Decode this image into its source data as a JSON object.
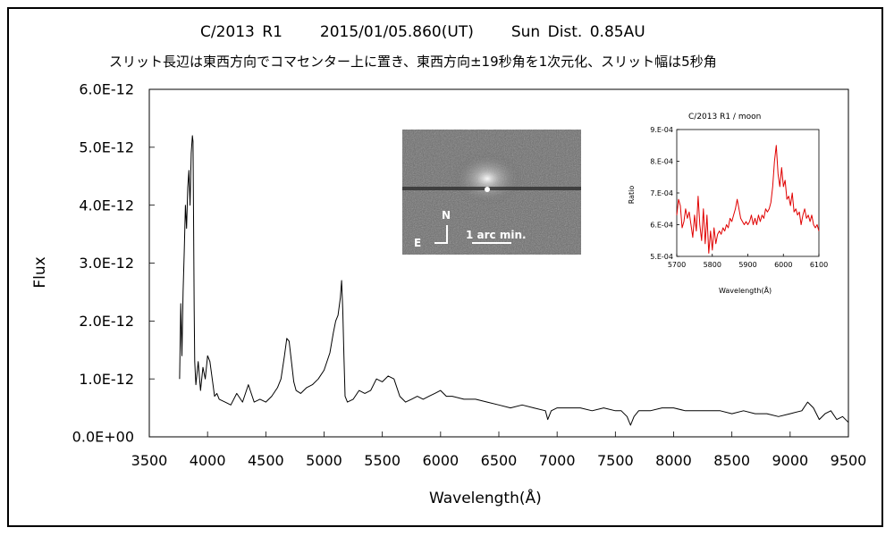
{
  "chart_data": [
    {
      "type": "line",
      "title": "C/2013 R1     2015/01/05.860(UT)     Sun Dist. 0.85AU",
      "subtitle": "スリット長辺は東西方向でコマセンター上に置き、東西方向±19秒角を1次元化、スリット幅は5秒角",
      "xlabel": "Wavelength(Å)",
      "ylabel": "Flux",
      "xlim": [
        3500,
        9500
      ],
      "ylim": [
        0,
        6e-12
      ],
      "x_ticks": [
        "3500",
        "4000",
        "4500",
        "5000",
        "5500",
        "6000",
        "6500",
        "7000",
        "7500",
        "8000",
        "8500",
        "9000",
        "9500"
      ],
      "y_ticks": [
        "0.0E+00",
        "1.0E-12",
        "2.0E-12",
        "3.0E-12",
        "4.0E-12",
        "5.0E-12",
        "6.0E-12"
      ],
      "grid": false,
      "line_color": "#000000",
      "series": [
        {
          "x": [
            3760,
            3770,
            3780,
            3790,
            3800,
            3810,
            3820,
            3830,
            3840,
            3850,
            3860,
            3870,
            3875,
            3880,
            3885,
            3890,
            3900,
            3910,
            3920,
            3940,
            3960,
            3980,
            4000,
            4020,
            4040,
            4060,
            4080,
            4100,
            4150,
            4200,
            4250,
            4300,
            4350,
            4400,
            4450,
            4500,
            4550,
            4600,
            4630,
            4660,
            4680,
            4700,
            4720,
            4740,
            4760,
            4800,
            4850,
            4900,
            4950,
            5000,
            5050,
            5080,
            5100,
            5120,
            5140,
            5150,
            5160,
            5170,
            5180,
            5200,
            5250,
            5300,
            5350,
            5400,
            5450,
            5500,
            5550,
            5600,
            5650,
            5700,
            5750,
            5800,
            5850,
            5900,
            5950,
            6000,
            6050,
            6100,
            6200,
            6300,
            6400,
            6500,
            6600,
            6700,
            6800,
            6900,
            6920,
            6950,
            7000,
            7100,
            7200,
            7300,
            7400,
            7500,
            7550,
            7600,
            7630,
            7660,
            7700,
            7750,
            7800,
            7900,
            8000,
            8100,
            8200,
            8300,
            8400,
            8500,
            8600,
            8700,
            8800,
            8900,
            9000,
            9100,
            9150,
            9200,
            9250,
            9300,
            9350,
            9400,
            9450,
            9500
          ],
          "y": [
            1e-12,
            2.3e-12,
            1.4e-12,
            2.5e-12,
            3.2e-12,
            4e-12,
            3.6e-12,
            4.3e-12,
            4.6e-12,
            4e-12,
            4.9e-12,
            5.2e-12,
            5.1e-12,
            3.8e-12,
            2.2e-12,
            1.3e-12,
            9e-13,
            1.1e-12,
            1.3e-12,
            8e-13,
            1.2e-12,
            1e-12,
            1.4e-12,
            1.3e-12,
            1e-12,
            7e-13,
            7.5e-13,
            6.5e-13,
            6e-13,
            5.5e-13,
            7.5e-13,
            6e-13,
            9e-13,
            6e-13,
            6.5e-13,
            6e-13,
            7e-13,
            8.5e-13,
            1e-12,
            1.4e-12,
            1.7e-12,
            1.65e-12,
            1.3e-12,
            9.5e-13,
            8e-13,
            7.5e-13,
            8.5e-13,
            9e-13,
            1e-12,
            1.15e-12,
            1.45e-12,
            1.8e-12,
            2e-12,
            2.1e-12,
            2.4e-12,
            2.7e-12,
            2.2e-12,
            1.4e-12,
            7e-13,
            6e-13,
            6.5e-13,
            8e-13,
            7.5e-13,
            8e-13,
            1e-12,
            9.5e-13,
            1.05e-12,
            1e-12,
            7e-13,
            6e-13,
            6.5e-13,
            7e-13,
            6.5e-13,
            7e-13,
            7.5e-13,
            8e-13,
            7e-13,
            7e-13,
            6.5e-13,
            6.5e-13,
            6e-13,
            5.5e-13,
            5e-13,
            5.5e-13,
            5e-13,
            4.5e-13,
            3e-13,
            4.5e-13,
            5e-13,
            5e-13,
            5e-13,
            4.5e-13,
            5e-13,
            4.5e-13,
            4.5e-13,
            3.5e-13,
            2e-13,
            3.5e-13,
            4.5e-13,
            4.5e-13,
            4.5e-13,
            5e-13,
            5e-13,
            4.5e-13,
            4.5e-13,
            4.5e-13,
            4.5e-13,
            4e-13,
            4.5e-13,
            4e-13,
            4e-13,
            3.5e-13,
            4e-13,
            4.5e-13,
            6e-13,
            5e-13,
            3e-13,
            4e-13,
            4.5e-13,
            3e-13,
            3.5e-13,
            2.5e-13
          ]
        }
      ]
    },
    {
      "type": "line",
      "title": "C/2013 R1 / moon",
      "xlabel": "Wavelength(Å)",
      "ylabel": "Ratio",
      "xlim": [
        5700,
        6100
      ],
      "ylim": [
        0.0005,
        0.0009
      ],
      "x_ticks": [
        "5700",
        "5800",
        "5900",
        "6000",
        "6100"
      ],
      "y_ticks": [
        "5.E-04",
        "6.E-04",
        "7.E-04",
        "8.E-04",
        "9.E-04"
      ],
      "grid": false,
      "line_color": "#e00000",
      "series": [
        {
          "x": [
            5700,
            5705,
            5710,
            5715,
            5720,
            5725,
            5730,
            5735,
            5740,
            5745,
            5750,
            5755,
            5760,
            5765,
            5770,
            5775,
            5780,
            5785,
            5790,
            5795,
            5800,
            5805,
            5810,
            5815,
            5820,
            5825,
            5830,
            5835,
            5840,
            5845,
            5850,
            5855,
            5860,
            5865,
            5870,
            5875,
            5880,
            5885,
            5890,
            5895,
            5900,
            5905,
            5910,
            5915,
            5920,
            5925,
            5930,
            5935,
            5940,
            5945,
            5950,
            5955,
            5960,
            5965,
            5970,
            5975,
            5980,
            5985,
            5990,
            5995,
            6000,
            6005,
            6010,
            6015,
            6020,
            6025,
            6030,
            6035,
            6040,
            6045,
            6050,
            6055,
            6060,
            6065,
            6070,
            6075,
            6080,
            6085,
            6090,
            6095,
            6100
          ],
          "y": [
            0.00063,
            0.00068,
            0.00066,
            0.00059,
            0.00061,
            0.00065,
            0.00062,
            0.00064,
            0.0006,
            0.00056,
            0.00063,
            0.00058,
            0.00069,
            0.0006,
            0.00055,
            0.00065,
            0.00054,
            0.00063,
            0.00051,
            0.00058,
            0.00052,
            0.00059,
            0.00054,
            0.00057,
            0.00058,
            0.00057,
            0.00059,
            0.00058,
            0.0006,
            0.00059,
            0.00062,
            0.00061,
            0.00063,
            0.00065,
            0.00068,
            0.00065,
            0.00062,
            0.00061,
            0.0006,
            0.00061,
            0.0006,
            0.00061,
            0.00063,
            0.0006,
            0.00062,
            0.0006,
            0.00063,
            0.00061,
            0.00063,
            0.00062,
            0.00065,
            0.00064,
            0.00065,
            0.00067,
            0.00072,
            0.0008,
            0.00085,
            0.00076,
            0.00072,
            0.00078,
            0.00072,
            0.00074,
            0.00068,
            0.00069,
            0.00066,
            0.0007,
            0.00064,
            0.00065,
            0.00063,
            0.00064,
            0.0006,
            0.00063,
            0.00065,
            0.00062,
            0.00063,
            0.00061,
            0.00063,
            0.0006,
            0.00059,
            0.0006,
            0.00058
          ]
        }
      ]
    }
  ],
  "inset_image": {
    "compass_n": "N",
    "compass_e": "E",
    "scale_label": "1 arc min."
  }
}
